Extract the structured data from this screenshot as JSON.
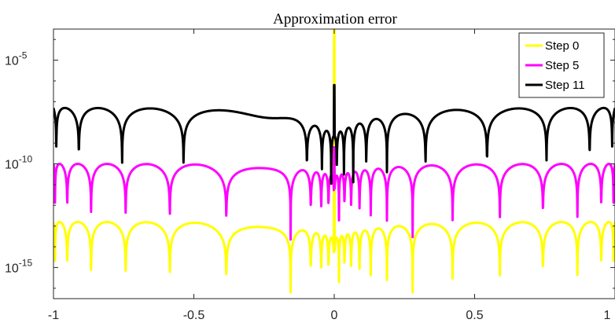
{
  "chart_data": {
    "type": "line",
    "title": "Approximation error",
    "xlabel": "",
    "ylabel": "",
    "xlim": [
      -1,
      1
    ],
    "ylim_exponent": [
      -16.5,
      -3.5
    ],
    "yscale": "log",
    "xticks": [
      {
        "value": -1,
        "label": "-1"
      },
      {
        "value": -0.5,
        "label": "-0.5"
      },
      {
        "value": 0,
        "label": "0"
      },
      {
        "value": 0.5,
        "label": "0.5"
      },
      {
        "value": 1,
        "label": "1"
      }
    ],
    "yticks": [
      {
        "exponent": -5,
        "base": "10",
        "exp_label": "-5"
      },
      {
        "exponent": -10,
        "base": "10",
        "exp_label": "-10"
      },
      {
        "exponent": -15,
        "base": "10",
        "exp_label": "-15"
      }
    ],
    "grid": false,
    "legend_position": "top-right",
    "series": [
      {
        "name": "Step 0",
        "color": "#ffff00",
        "peak_exponent": -12.8,
        "peak_exponent_center": -13.6,
        "dip_exponent": -16.2,
        "lobes_outer": 15,
        "center_spike_exponent": -3.2
      },
      {
        "name": "Step 5",
        "color": "#ff00ff",
        "peak_exponent": -10.0,
        "peak_exponent_center": -10.6,
        "dip_exponent": -14.5,
        "lobes_outer": 15,
        "center_spike_exponent": -9.2
      },
      {
        "name": "Step 11",
        "color": "#000000",
        "peak_exponent": -7.3,
        "peak_exponent_center": -8.6,
        "dip_exponent": -12.2,
        "lobes_outer": 11,
        "center_spike_exponent": -6.2
      }
    ]
  }
}
